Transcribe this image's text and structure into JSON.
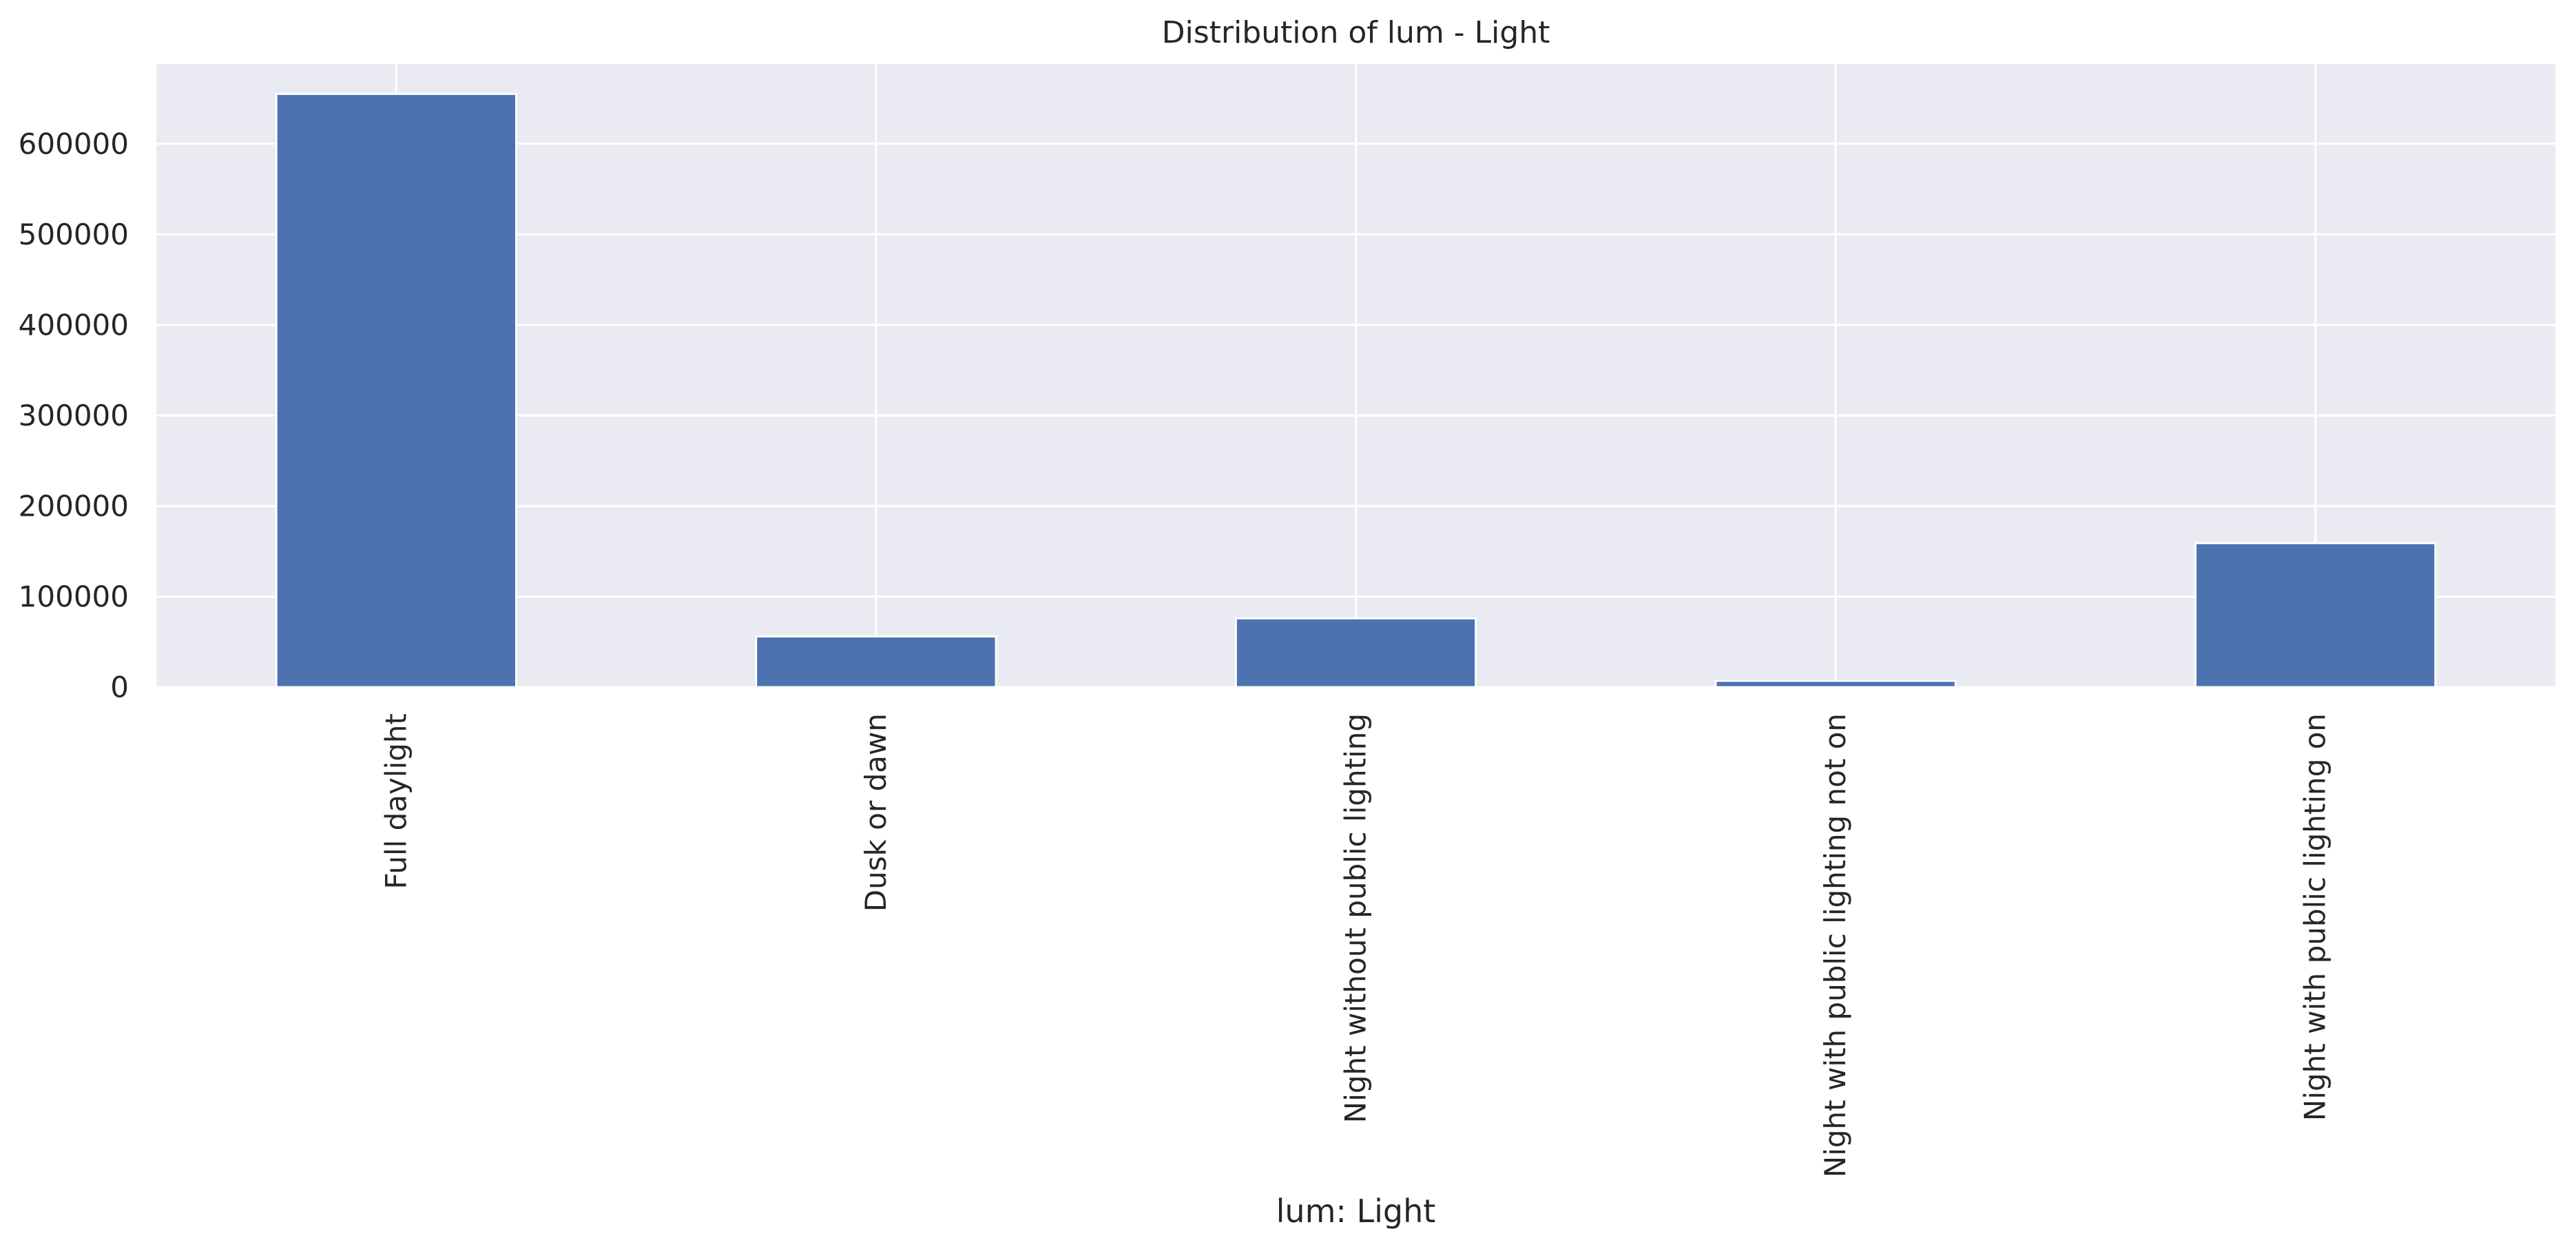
{
  "chart_data": {
    "type": "bar",
    "title": "Distribution of lum - Light",
    "xlabel": "lum: Light",
    "ylabel": "",
    "categories": [
      "Full daylight",
      "Dusk or dawn",
      "Night without public lighting",
      "Night with public lighting not on",
      "Night with public lighting on"
    ],
    "values": [
      655000,
      56000,
      76000,
      7000,
      159000
    ],
    "ylim": [
      0,
      688000
    ],
    "yticks": [
      0,
      100000,
      200000,
      300000,
      400000,
      500000,
      600000
    ],
    "ytick_labels": [
      "0",
      "100000",
      "200000",
      "300000",
      "400000",
      "500000",
      "600000"
    ],
    "grid": true,
    "legend": "none",
    "colors": {
      "bar": "#4c72b0",
      "plot_background": "#eaeaf2",
      "grid": "#ffffff",
      "text": "#262626"
    }
  }
}
